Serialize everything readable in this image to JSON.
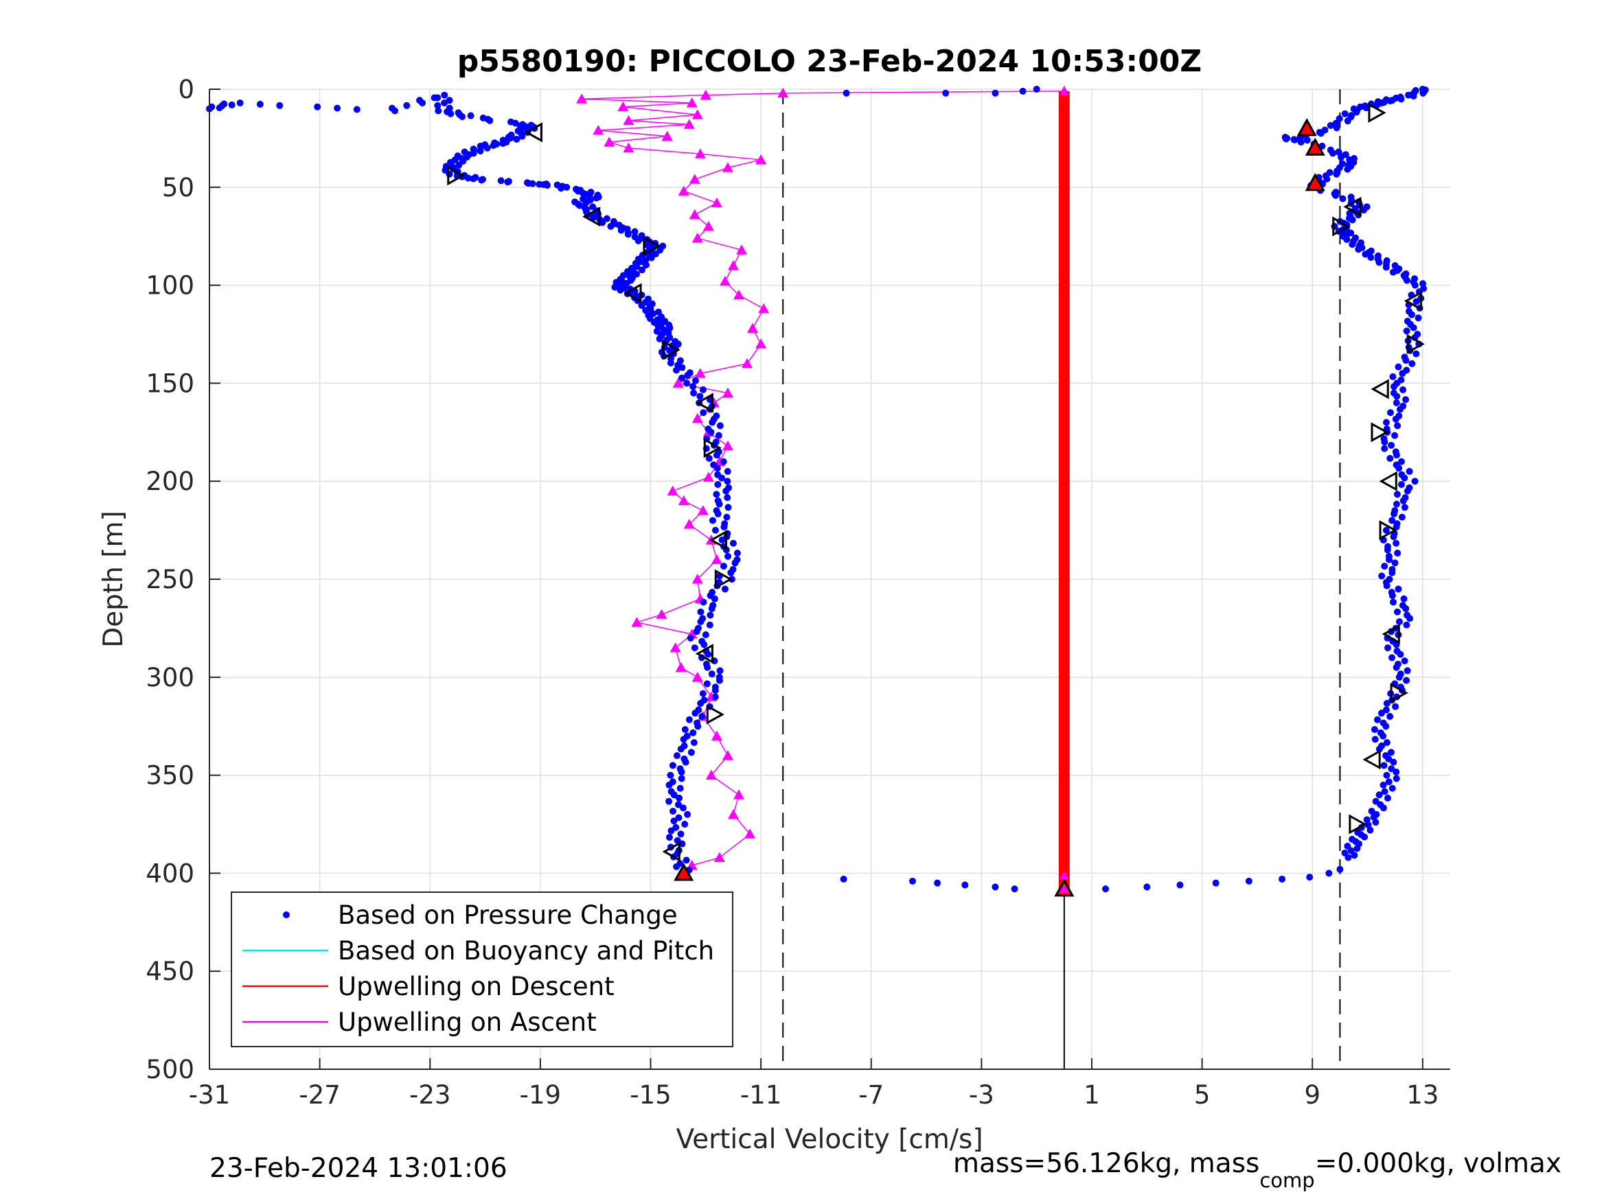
{
  "chart_data": {
    "type": "scatter",
    "title": "p5580190: PICCOLO 23-Feb-2024 10:53:00Z",
    "xlabel": "Vertical Velocity [cm/s]",
    "ylabel": "Depth [m]",
    "xlim": [
      -31,
      14
    ],
    "ylim": [
      0,
      500
    ],
    "y_reversed": true,
    "grid": true,
    "xticks": [
      -31,
      -27,
      -23,
      -19,
      -15,
      -11,
      -7,
      -3,
      1,
      5,
      9,
      13
    ],
    "yticks": [
      0,
      50,
      100,
      150,
      200,
      250,
      300,
      350,
      400,
      450,
      500
    ],
    "xtick_labels": [
      "-31",
      "-27",
      "-23",
      "-19",
      "-15",
      "-11",
      "-7",
      "-3",
      "1",
      "5",
      "9",
      "13"
    ],
    "ytick_labels": [
      "0",
      "50",
      "100",
      "150",
      "200",
      "250",
      "300",
      "350",
      "400",
      "450",
      "500"
    ],
    "dashed_vlines": [
      -10.2,
      10
    ],
    "legend_position": "bottom-left",
    "series": [
      {
        "name": "Based on Pressure Change",
        "color": "#0000ff",
        "style": "dots",
        "descent": {
          "points": [
            [
              -31,
              10
            ],
            [
              -30.1,
              7
            ],
            [
              -24.5,
              11
            ],
            [
              -22.5,
              3
            ],
            [
              -22.5,
              11
            ],
            [
              -21.6,
              14
            ],
            [
              -19.6,
              18
            ],
            [
              -19.4,
              20
            ],
            [
              -19.9,
              24
            ],
            [
              -20.3,
              27
            ],
            [
              -21,
              29
            ],
            [
              -21.5,
              32
            ],
            [
              -22.0,
              36
            ],
            [
              -22.3,
              40
            ],
            [
              -22,
              44
            ],
            [
              -21.2,
              46
            ],
            [
              -19.3,
              48
            ],
            [
              -18.5,
              49
            ],
            [
              -17.5,
              52
            ],
            [
              -17,
              55
            ],
            [
              -17.6,
              58
            ],
            [
              -17.1,
              62
            ],
            [
              -17,
              65
            ],
            [
              -16.5,
              68
            ],
            [
              -15.9,
              72
            ],
            [
              -15.4,
              76
            ],
            [
              -14.8,
              80
            ],
            [
              -15,
              84
            ],
            [
              -15.3,
              88
            ],
            [
              -15.6,
              93
            ],
            [
              -15.9,
              97
            ],
            [
              -16.2,
              100
            ],
            [
              -15.8,
              103
            ],
            [
              -15.3,
              107
            ],
            [
              -15,
              112
            ],
            [
              -14.8,
              117
            ],
            [
              -14.5,
              121
            ],
            [
              -14.6,
              126
            ],
            [
              -14.2,
              130
            ],
            [
              -14.4,
              135
            ],
            [
              -13.9,
              142
            ],
            [
              -13.5,
              150
            ],
            [
              -13.0,
              160
            ],
            [
              -12.7,
              170
            ],
            [
              -12.8,
              180
            ],
            [
              -12.6,
              190
            ],
            [
              -12.3,
              200
            ],
            [
              -12.4,
              210
            ],
            [
              -12.5,
              220
            ],
            [
              -12.3,
              230
            ],
            [
              -12.0,
              240
            ],
            [
              -12.3,
              250
            ],
            [
              -12.8,
              260
            ],
            [
              -13.0,
              270
            ],
            [
              -13.3,
              280
            ],
            [
              -13.0,
              290
            ],
            [
              -12.6,
              300
            ],
            [
              -12.9,
              310
            ],
            [
              -13.3,
              320
            ],
            [
              -13.6,
              330
            ],
            [
              -13.8,
              340
            ],
            [
              -14.1,
              350
            ],
            [
              -14.2,
              360
            ],
            [
              -13.9,
              370
            ],
            [
              -14.1,
              380
            ],
            [
              -14.0,
              390
            ],
            [
              -13.8,
              400
            ]
          ],
          "markers_left": [
            [
              -19.2,
              22
            ],
            [
              -22.1,
              44
            ],
            [
              -17.1,
              65
            ],
            [
              -15,
              80
            ],
            [
              -15.6,
              104
            ],
            [
              -14.3,
              133
            ],
            [
              -13.0,
              160
            ],
            [
              -12.8,
              183
            ],
            [
              -12.5,
              230
            ],
            [
              -12.4,
              250
            ],
            [
              -13.0,
              288
            ],
            [
              -12.7,
              319
            ],
            [
              -14.2,
              389
            ]
          ]
        },
        "bottom_transition": [
          [
            -8,
            403
          ],
          [
            -5.5,
            404
          ],
          [
            -4.6,
            405
          ],
          [
            -3.6,
            406
          ],
          [
            -2.5,
            407
          ],
          [
            -1.8,
            408
          ],
          [
            1.5,
            408
          ],
          [
            3.0,
            407
          ],
          [
            4.2,
            406
          ],
          [
            5.5,
            405
          ],
          [
            6.7,
            404
          ],
          [
            7.9,
            403
          ],
          [
            8.9,
            402
          ],
          [
            9.6,
            400
          ],
          [
            10,
            398
          ]
        ],
        "surface_transition": [
          [
            -7.9,
            2
          ],
          [
            -4.3,
            2
          ],
          [
            -2.5,
            2
          ],
          [
            -1.5,
            1
          ],
          [
            -1.0,
            0
          ]
        ],
        "ascent": {
          "points": [
            [
              10.3,
              392
            ],
            [
              10.5,
              385
            ],
            [
              10.9,
              378
            ],
            [
              11.3,
              370
            ],
            [
              11.6,
              360
            ],
            [
              11.9,
              350
            ],
            [
              11.7,
              340
            ],
            [
              11.4,
              330
            ],
            [
              11.6,
              320
            ],
            [
              12.0,
              310
            ],
            [
              12.3,
              300
            ],
            [
              12.1,
              290
            ],
            [
              11.8,
              280
            ],
            [
              12.4,
              270
            ],
            [
              12.1,
              260
            ],
            [
              11.7,
              250
            ],
            [
              11.9,
              240
            ],
            [
              11.8,
              230
            ],
            [
              12.0,
              220
            ],
            [
              12.2,
              210
            ],
            [
              12.5,
              200
            ],
            [
              12.1,
              190
            ],
            [
              11.7,
              180
            ],
            [
              11.9,
              170
            ],
            [
              12.2,
              160
            ],
            [
              12.0,
              150
            ],
            [
              12.4,
              140
            ],
            [
              12.7,
              130
            ],
            [
              12.6,
              120
            ],
            [
              12.7,
              110
            ],
            [
              12.9,
              100
            ],
            [
              12.3,
              95
            ],
            [
              11.8,
              90
            ],
            [
              11.2,
              85
            ],
            [
              10.7,
              80
            ],
            [
              10.3,
              75
            ],
            [
              10.0,
              70
            ],
            [
              10.4,
              65
            ],
            [
              10.8,
              60
            ],
            [
              10.2,
              55
            ],
            [
              9.1,
              50
            ],
            [
              9.4,
              45
            ],
            [
              10.2,
              40
            ],
            [
              10.4,
              36
            ],
            [
              9.8,
              32
            ],
            [
              8.6,
              26
            ],
            [
              8.0,
              25
            ],
            [
              9.4,
              22
            ],
            [
              10.2,
              15
            ],
            [
              10.6,
              10
            ],
            [
              11.4,
              7
            ],
            [
              12.0,
              5
            ],
            [
              12.9,
              2
            ],
            [
              13,
              0
            ]
          ],
          "markers": [
            [
              11.3,
              12
            ],
            [
              10.5,
              60
            ],
            [
              10,
              70
            ],
            [
              12.7,
              108
            ],
            [
              12.7,
              130
            ],
            [
              11.5,
              153
            ],
            [
              11.4,
              175
            ],
            [
              11.8,
              200
            ],
            [
              11.7,
              225
            ],
            [
              11.9,
              278
            ],
            [
              12.1,
              308
            ],
            [
              11.2,
              342
            ],
            [
              10.6,
              375
            ]
          ]
        }
      },
      {
        "name": "Based on Buoyancy and Pitch",
        "color": "#00e5ee",
        "style": "line",
        "points": []
      },
      {
        "name": "Upwelling on Descent",
        "color": "#ff0000",
        "style": "line+triangles",
        "x_constant": 0,
        "depth_range": [
          1,
          410
        ],
        "markers": [
          [
            8.8,
            20
          ],
          [
            9.1,
            30
          ],
          [
            9.1,
            48
          ],
          [
            -13.8,
            400
          ],
          [
            0,
            408
          ]
        ]
      },
      {
        "name": "Upwelling on Ascent",
        "color": "#ff00ff",
        "style": "line+triangles",
        "points": [
          [
            -13.5,
            396
          ],
          [
            -12.5,
            392
          ],
          [
            -11.4,
            380
          ],
          [
            -12.0,
            370
          ],
          [
            -11.8,
            360
          ],
          [
            -12.8,
            350
          ],
          [
            -12.2,
            340
          ],
          [
            -12.6,
            330
          ],
          [
            -13.1,
            320
          ],
          [
            -12.8,
            310
          ],
          [
            -13.3,
            300
          ],
          [
            -13.9,
            295
          ],
          [
            -14.1,
            285
          ],
          [
            -13.5,
            278
          ],
          [
            -15.5,
            272
          ],
          [
            -14.6,
            268
          ],
          [
            -13.2,
            260
          ],
          [
            -13.3,
            250
          ],
          [
            -12.6,
            240
          ],
          [
            -12.8,
            230
          ],
          [
            -13.6,
            222
          ],
          [
            -13.1,
            215
          ],
          [
            -13.8,
            210
          ],
          [
            -14.2,
            205
          ],
          [
            -12.9,
            198
          ],
          [
            -12.5,
            190
          ],
          [
            -12.2,
            182
          ],
          [
            -12.9,
            175
          ],
          [
            -13.3,
            168
          ],
          [
            -12.7,
            160
          ],
          [
            -12.2,
            155
          ],
          [
            -14.0,
            150
          ],
          [
            -13.2,
            145
          ],
          [
            -11.5,
            140
          ],
          [
            -11.0,
            130
          ],
          [
            -11.3,
            122
          ],
          [
            -10.9,
            112
          ],
          [
            -11.8,
            105
          ],
          [
            -12.3,
            98
          ],
          [
            -12.0,
            90
          ],
          [
            -11.7,
            82
          ],
          [
            -13.3,
            76
          ],
          [
            -12.9,
            70
          ],
          [
            -13.4,
            64
          ],
          [
            -12.6,
            58
          ],
          [
            -13.8,
            52
          ],
          [
            -13.4,
            46
          ],
          [
            -12.2,
            40
          ],
          [
            -11.0,
            36
          ],
          [
            -13.2,
            33
          ],
          [
            -15.8,
            30
          ],
          [
            -16.5,
            27
          ],
          [
            -14.4,
            24
          ],
          [
            -16.9,
            21
          ],
          [
            -13.6,
            18
          ],
          [
            -15.8,
            16
          ],
          [
            -13.3,
            13
          ],
          [
            -16.0,
            9
          ],
          [
            -13.5,
            7
          ],
          [
            -17.5,
            5
          ],
          [
            -13.0,
            3
          ],
          [
            -10.2,
            2
          ],
          [
            0,
            1
          ]
        ],
        "markers": [
          [
            0,
            1
          ],
          [
            0,
            401
          ],
          [
            0,
            408
          ]
        ]
      }
    ]
  },
  "footer": {
    "left_timestamp": "23-Feb-2024 13:01:06",
    "right_text_main": "mass=56.126kg, mass",
    "right_text_sub": "comp",
    "right_text_tail": "=0.000kg, volmax"
  },
  "colors": {
    "pressure": "#0000ff",
    "buoyancy": "#00e5ee",
    "upwelling_descent": "#ff0000",
    "upwelling_ascent": "#ff00ff",
    "grid": "#dfdfdf",
    "axis": "#262626"
  }
}
